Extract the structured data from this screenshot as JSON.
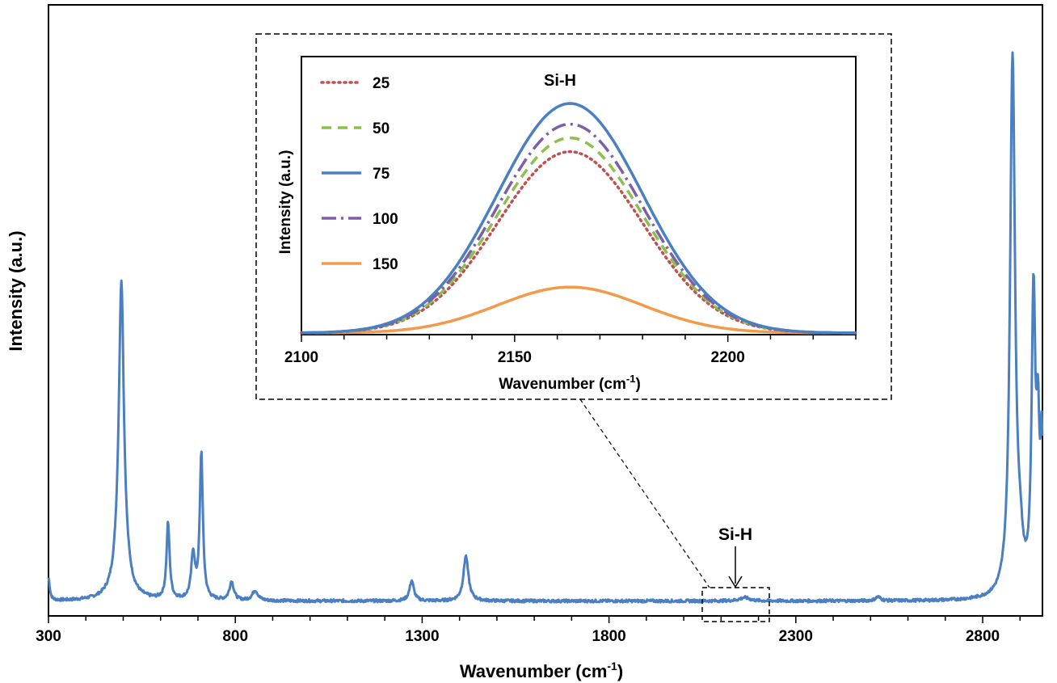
{
  "chart_data": [
    {
      "type": "line",
      "title": "",
      "xlabel": "Wavenumber (cm",
      "xlabel_sup": "-1",
      "xlabel_end": ")",
      "ylabel": "Intensity (a.u.)",
      "xlim": [
        300,
        2960
      ],
      "ylim": [
        0,
        100
      ],
      "x_ticks": [
        300,
        800,
        1300,
        1800,
        2300,
        2800
      ],
      "y_ticks_shown": false,
      "annotation": "Si-H",
      "zoom_box_range": [
        2110,
        2290
      ],
      "series": [
        {
          "color": "#4a7fc1",
          "baseline": 1.2,
          "peaks": [
            {
              "x": 300,
              "height": 4,
              "width": 4
            },
            {
              "x": 495,
              "height": 36,
              "width": 7
            },
            {
              "x": 495,
              "height": 21,
              "width": 13
            },
            {
              "x": 620,
              "height": 13.5,
              "width": 5
            },
            {
              "x": 687,
              "height": 8,
              "width": 6
            },
            {
              "x": 709,
              "height": 26,
              "width": 5
            },
            {
              "x": 790,
              "height": 3.3,
              "width": 7
            },
            {
              "x": 853,
              "height": 1.8,
              "width": 9
            },
            {
              "x": 1272,
              "height": 3.6,
              "width": 7
            },
            {
              "x": 1417,
              "height": 8,
              "width": 8
            },
            {
              "x": 2163,
              "height": 0.6,
              "width": 16
            },
            {
              "x": 2520,
              "height": 0.7,
              "width": 8
            },
            {
              "x": 2880,
              "height": 96,
              "width": 8
            },
            {
              "x": 2936,
              "height": 52,
              "width": 6
            },
            {
              "x": 2948,
              "height": 25,
              "width": 5
            },
            {
              "x": 2958,
              "height": 24,
              "width": 4
            },
            {
              "x": 2900,
              "height": 6,
              "width": 8
            }
          ]
        }
      ]
    },
    {
      "type": "line",
      "inset": true,
      "annotation": "Si-H",
      "xlabel": "Wavenumber (cm",
      "xlabel_sup": "-1",
      "xlabel_end": ")",
      "ylabel": "Intensity (a.u.)",
      "xlim": [
        2100,
        2230
      ],
      "ylim": [
        0,
        100
      ],
      "x_ticks": [
        2100,
        2150,
        2200
      ],
      "peak_center": 2163,
      "peak_sigma": 17,
      "series": [
        {
          "name": "25",
          "color": "#c0504d",
          "dash": "dot",
          "peak": 79
        },
        {
          "name": "50",
          "color": "#8cbf4d",
          "dash": "dash",
          "peak": 85
        },
        {
          "name": "75",
          "color": "#4a7fc1",
          "dash": "solid",
          "peak": 100
        },
        {
          "name": "100",
          "color": "#7d5fa8",
          "dash": "dashdot",
          "peak": 91
        },
        {
          "name": "150",
          "color": "#f29a4a",
          "dash": "solid",
          "peak": 20
        }
      ]
    }
  ]
}
